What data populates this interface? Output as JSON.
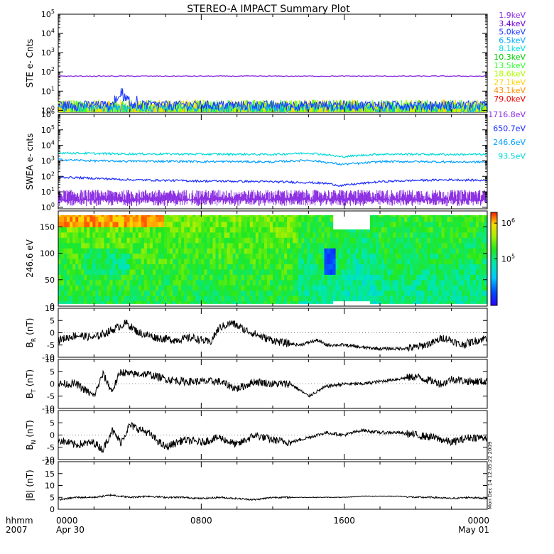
{
  "title": "STEREO-A IMPACT Summary Plot",
  "side_stamp": "Mon Dec 14 12:05:22 2009",
  "time_axis": {
    "corner_labels": [
      "hhmm",
      "2007"
    ],
    "ticks": [
      {
        "hhmm": "0000",
        "date": "Apr 30",
        "hour": 0
      },
      {
        "hhmm": "0800",
        "date": "",
        "hour": 8
      },
      {
        "hhmm": "1600",
        "date": "",
        "hour": 16
      },
      {
        "hhmm": "0000",
        "date": "May 01",
        "hour": 24
      }
    ],
    "range_hours": [
      0,
      24
    ]
  },
  "chart_data": [
    {
      "id": "ste",
      "type": "line",
      "ylabel": "STE e- Cnts",
      "yscale": "log",
      "ylim": [
        0.8,
        100000
      ],
      "yticks": [
        {
          "base": "10",
          "exp": "0",
          "value": 1
        },
        {
          "base": "10",
          "exp": "1",
          "value": 10
        },
        {
          "base": "10",
          "exp": "2",
          "value": 100
        },
        {
          "base": "10",
          "exp": "3",
          "value": 1000
        },
        {
          "base": "10",
          "exp": "4",
          "value": 10000
        },
        {
          "base": "10",
          "exp": "5",
          "value": 100000
        }
      ],
      "legend": [
        "1.9keV",
        "3.4keV",
        "5.0keV",
        "6.5keV",
        "8.1keV",
        "10.3keV",
        "13.5keV",
        "18.6keV",
        "27.1keV",
        "43.1keV",
        "79.0keV"
      ],
      "legend_colors": [
        "#8a2be2",
        "#6a00d0",
        "#1a3aff",
        "#00aaff",
        "#00e0e0",
        "#00d000",
        "#30ff30",
        "#b0ff00",
        "#ffd000",
        "#ff9000",
        "#ee0000"
      ],
      "series": [
        {
          "name": "1.9keV",
          "approx_level": 60
        },
        {
          "name": "3.4keV",
          "approx_level": 1.5,
          "peak": 15,
          "peak_hour": 3.6
        },
        {
          "name": "5.0keV",
          "approx_level": 1.2
        }
      ]
    },
    {
      "id": "swea",
      "type": "line",
      "ylabel": "SWEA e- cnts",
      "yscale": "log",
      "ylim": [
        0.8,
        1000000
      ],
      "yticks": [
        {
          "base": "10",
          "exp": "0",
          "value": 1
        },
        {
          "base": "10",
          "exp": "1",
          "value": 10
        },
        {
          "base": "10",
          "exp": "2",
          "value": 100
        },
        {
          "base": "10",
          "exp": "3",
          "value": 1000
        },
        {
          "base": "10",
          "exp": "4",
          "value": 10000
        },
        {
          "base": "10",
          "exp": "5",
          "value": 100000
        },
        {
          "base": "10",
          "exp": "6",
          "value": 1000000
        }
      ],
      "legend": [
        "1716.8eV",
        "650.7eV",
        "246.6eV",
        "93.5eV"
      ],
      "legend_colors": [
        "#8a2be2",
        "#1a2aff",
        "#00a0ff",
        "#00d8d8"
      ],
      "series": [
        {
          "name": "93.5eV",
          "x": [
            0,
            2,
            4,
            6,
            8,
            10,
            12,
            14,
            15,
            15.8,
            17,
            18,
            20,
            22,
            24
          ],
          "values": [
            3300,
            3000,
            2800,
            2800,
            2700,
            2700,
            2600,
            3200,
            2500,
            1800,
            2300,
            2700,
            2700,
            2600,
            2600
          ]
        },
        {
          "name": "246.6eV",
          "x": [
            0,
            2,
            4,
            6,
            8,
            10,
            12,
            14,
            15,
            15.8,
            17,
            18,
            20,
            22,
            24
          ],
          "values": [
            1200,
            1000,
            950,
            950,
            900,
            900,
            850,
            1100,
            800,
            600,
            700,
            900,
            900,
            850,
            850
          ]
        },
        {
          "name": "650.7eV",
          "x": [
            0,
            2,
            4,
            6,
            8,
            10,
            12,
            14,
            15,
            15.8,
            17,
            18,
            20,
            22,
            24
          ],
          "values": [
            90,
            75,
            60,
            55,
            50,
            48,
            45,
            40,
            35,
            25,
            35,
            45,
            55,
            60,
            55
          ]
        },
        {
          "name": "1716.8eV",
          "approx_level": 3
        }
      ]
    },
    {
      "id": "pad",
      "type": "heatmap",
      "ylabel": "246.6 eV",
      "ylim": [
        0,
        180
      ],
      "yticks": [
        0,
        50,
        100,
        150
      ],
      "colorbar": {
        "scale": "log",
        "range": [
          5000,
          2000000
        ],
        "ticks": [
          {
            "base": "10",
            "exp": "5",
            "value": 100000
          },
          {
            "base": "10",
            "exp": "6",
            "value": 1000000
          }
        ]
      }
    },
    {
      "id": "br",
      "type": "line",
      "ylabel": "B",
      "ysub": "R",
      "yunit": " (nT)",
      "ylim": [
        -10,
        10
      ],
      "yticks": [
        -10,
        -5,
        0,
        5,
        10
      ],
      "series": [
        {
          "name": "B_R",
          "x": [
            0,
            1,
            2,
            3,
            3.8,
            4.5,
            5.5,
            6.5,
            7.5,
            8.5,
            9,
            9.7,
            10.5,
            11.5,
            12.5,
            13.5,
            14.5,
            15,
            16,
            17,
            18,
            19,
            20,
            21,
            21.5,
            22,
            22.5,
            23,
            23.5,
            24
          ],
          "values": [
            -3,
            -1,
            -2,
            1,
            4,
            0,
            -2,
            -3,
            -2,
            -4,
            2,
            4,
            1,
            -2,
            -4,
            -5,
            -3,
            -5,
            -5,
            -6,
            -6.5,
            -6.5,
            -6,
            -4,
            -2,
            -3,
            -5,
            -4,
            -3,
            -2
          ]
        }
      ]
    },
    {
      "id": "bt",
      "type": "line",
      "ylabel": "B",
      "ysub": "T",
      "yunit": " (nT)",
      "ylim": [
        -10,
        10
      ],
      "yticks": [
        -10,
        -5,
        0,
        5,
        10
      ],
      "series": [
        {
          "name": "B_T",
          "x": [
            0,
            1,
            2,
            2.5,
            3,
            3.5,
            4,
            5,
            6,
            7,
            8,
            9,
            10,
            11,
            12,
            13,
            14,
            15,
            16,
            17,
            18,
            19,
            20,
            21,
            21.5,
            22,
            23,
            24
          ],
          "values": [
            0,
            0,
            -5,
            4,
            -3,
            5,
            4,
            4,
            2,
            1,
            1,
            1,
            -2,
            1,
            0,
            0,
            -5,
            -1,
            0,
            0,
            1,
            2,
            3,
            1,
            0,
            2,
            1,
            1
          ]
        }
      ]
    },
    {
      "id": "bn",
      "type": "line",
      "ylabel": "B",
      "ysub": "N",
      "yunit": " (nT)",
      "ylim": [
        -10,
        10
      ],
      "yticks": [
        -10,
        -5,
        0,
        5,
        10
      ],
      "series": [
        {
          "name": "B_N",
          "x": [
            0,
            1,
            2,
            2.5,
            3,
            3.5,
            4,
            5,
            6,
            7,
            8,
            9,
            10,
            11,
            12,
            13,
            14,
            15,
            16,
            17,
            18,
            19,
            20,
            21,
            22,
            23,
            24
          ],
          "values": [
            -2,
            -4,
            -3,
            -6,
            2,
            -3,
            4,
            1,
            -5,
            -2,
            -3,
            -1,
            -4,
            0,
            -2,
            -3,
            -1,
            1,
            0,
            2,
            1,
            1,
            0,
            -1,
            -3,
            -1,
            -1
          ]
        }
      ]
    },
    {
      "id": "bmag",
      "type": "line",
      "ylabel": "|B|",
      "ysub": "",
      "yunit": " (nT)",
      "ylim": [
        0,
        20
      ],
      "yticks": [
        0,
        5,
        10,
        15,
        20
      ],
      "series": [
        {
          "name": "|B|",
          "x": [
            0,
            1,
            2,
            3,
            4,
            5,
            6,
            7,
            8,
            9,
            10,
            11,
            12,
            13,
            14,
            15,
            16,
            17,
            18,
            19,
            20,
            21,
            22,
            23,
            24
          ],
          "values": [
            4,
            5,
            5,
            6,
            5,
            5.5,
            5,
            5,
            4.5,
            5,
            4.5,
            4,
            5,
            5,
            5,
            5,
            5,
            5.5,
            5.5,
            5.5,
            5,
            5,
            4.5,
            5,
            4.5
          ]
        }
      ]
    }
  ]
}
